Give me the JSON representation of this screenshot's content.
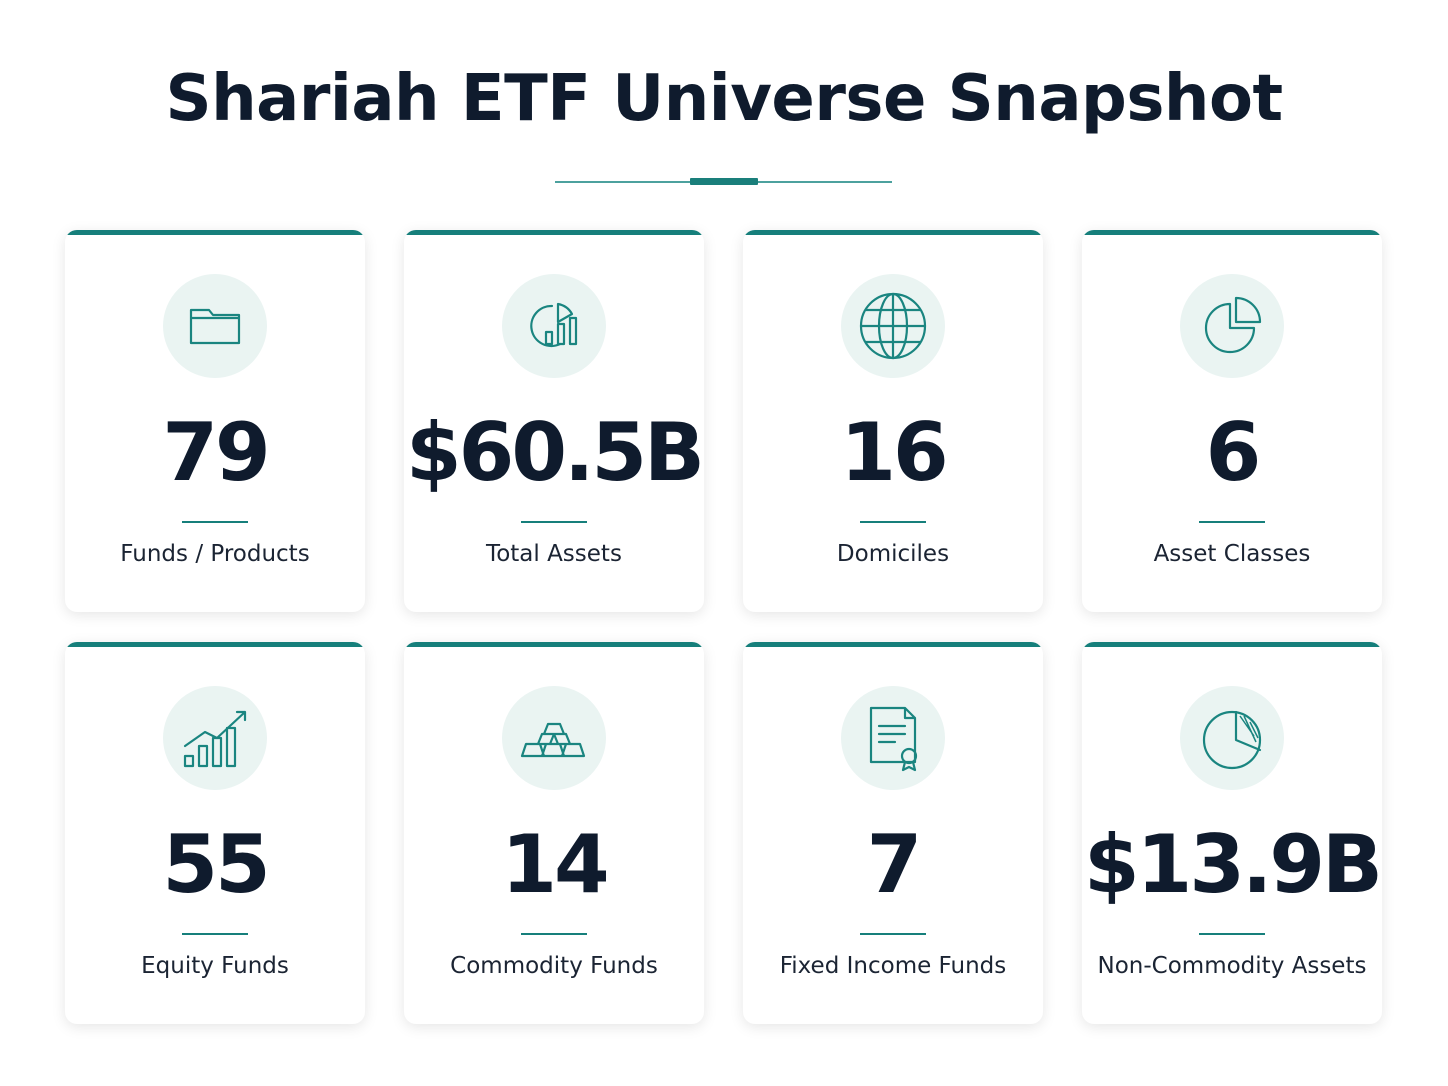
{
  "header": {
    "title": "Shariah ETF Universe Snapshot"
  },
  "cards": [
    {
      "value": "79",
      "label": "Funds / Products"
    },
    {
      "value": "$60.5B",
      "label": "Total Assets"
    },
    {
      "value": "16",
      "label": "Domiciles"
    },
    {
      "value": "6",
      "label": "Asset Classes"
    },
    {
      "value": "55",
      "label": "Equity Funds"
    },
    {
      "value": "14",
      "label": "Commodity Funds"
    },
    {
      "value": "7",
      "label": "Fixed Income Funds"
    },
    {
      "value": "$13.9B",
      "label": "Non-Commodity Assets"
    }
  ]
}
